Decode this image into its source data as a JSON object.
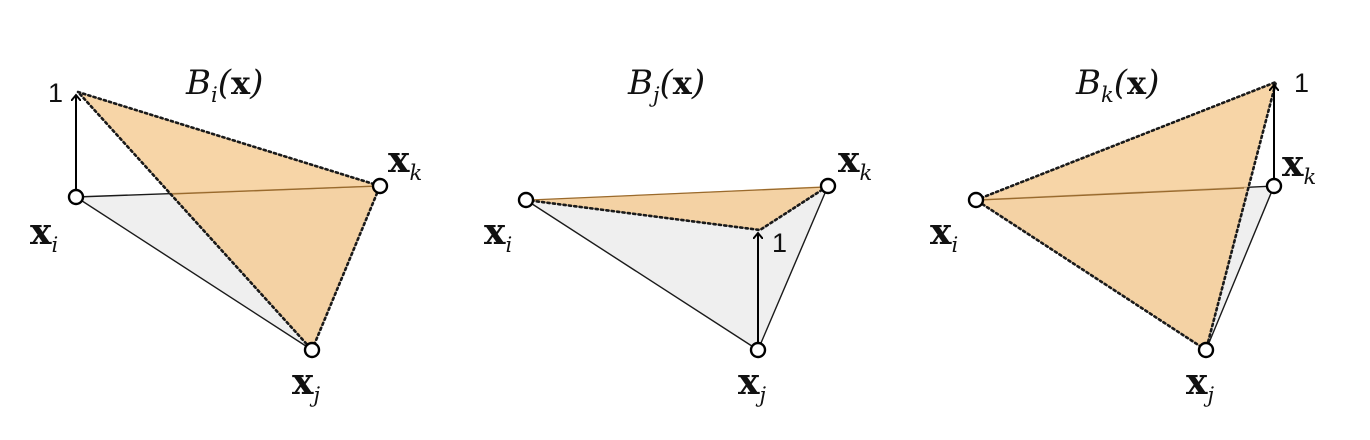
{
  "panels": [
    {
      "title": {
        "func": "B",
        "sub": "i",
        "arg": "x"
      },
      "one_label": "1",
      "vertices": [
        {
          "sym": "x",
          "sub": "i"
        },
        {
          "sym": "x",
          "sub": "j"
        },
        {
          "sym": "x",
          "sub": "k"
        }
      ]
    },
    {
      "title": {
        "func": "B",
        "sub": "j",
        "arg": "x"
      },
      "one_label": "1",
      "vertices": [
        {
          "sym": "x",
          "sub": "i"
        },
        {
          "sym": "x",
          "sub": "j"
        },
        {
          "sym": "x",
          "sub": "k"
        }
      ]
    },
    {
      "title": {
        "func": "B",
        "sub": "k",
        "arg": "x"
      },
      "one_label": "1",
      "vertices": [
        {
          "sym": "x",
          "sub": "i"
        },
        {
          "sym": "x",
          "sub": "j"
        },
        {
          "sym": "x",
          "sub": "k"
        }
      ]
    }
  ],
  "colors": {
    "hat_face": "#f5c98e",
    "base_face": "#efefef",
    "edge": "#1a1a1a"
  }
}
